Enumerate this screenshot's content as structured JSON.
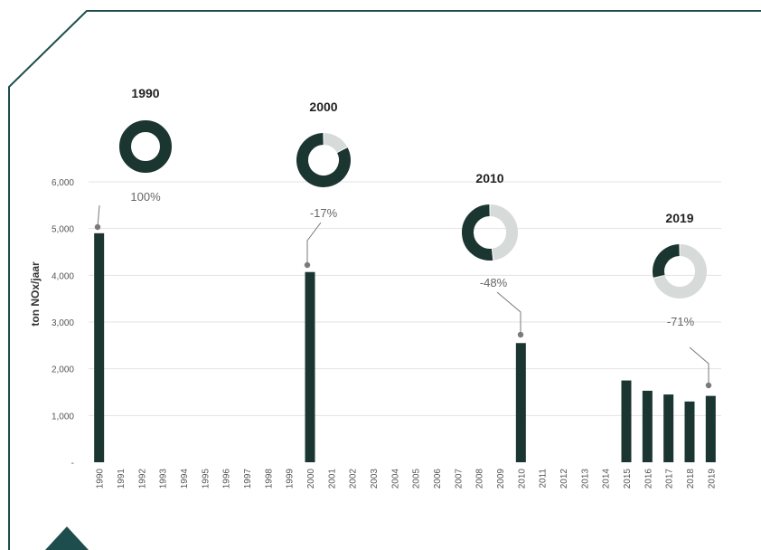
{
  "colors": {
    "bar": "#1b3530",
    "donut_dark": "#1b3530",
    "donut_light": "#d6dad9",
    "frame": "#1e4d4d",
    "grid": "#e3e3e3",
    "callout": "#7a7a7a"
  },
  "chart_data": {
    "type": "bar",
    "ylabel": "ton NOx/jaar",
    "ylim": [
      0,
      6000
    ],
    "y_ticks": [
      "-",
      "1,000",
      "2,000",
      "3,000",
      "4,000",
      "5,000",
      "6,000"
    ],
    "categories": [
      "1990",
      "1991",
      "1992",
      "1993",
      "1994",
      "1995",
      "1996",
      "1997",
      "1998",
      "1999",
      "2000",
      "2001",
      "2002",
      "2003",
      "2004",
      "2005",
      "2006",
      "2007",
      "2008",
      "2009",
      "2010",
      "2011",
      "2012",
      "2013",
      "2014",
      "2015",
      "2016",
      "2017",
      "2018",
      "2019"
    ],
    "values": [
      4900,
      null,
      null,
      null,
      null,
      null,
      null,
      null,
      null,
      null,
      4070,
      null,
      null,
      null,
      null,
      null,
      null,
      null,
      null,
      null,
      2550,
      null,
      null,
      null,
      null,
      1750,
      1530,
      1450,
      1300,
      1420
    ],
    "grid": true,
    "annotations": [
      {
        "year": "1990",
        "label": "100%",
        "share": 1.0
      },
      {
        "year": "2000",
        "label": "-17%",
        "share": 0.83
      },
      {
        "year": "2010",
        "label": "-48%",
        "share": 0.52
      },
      {
        "year": "2019",
        "label": "-71%",
        "share": 0.29
      }
    ]
  }
}
